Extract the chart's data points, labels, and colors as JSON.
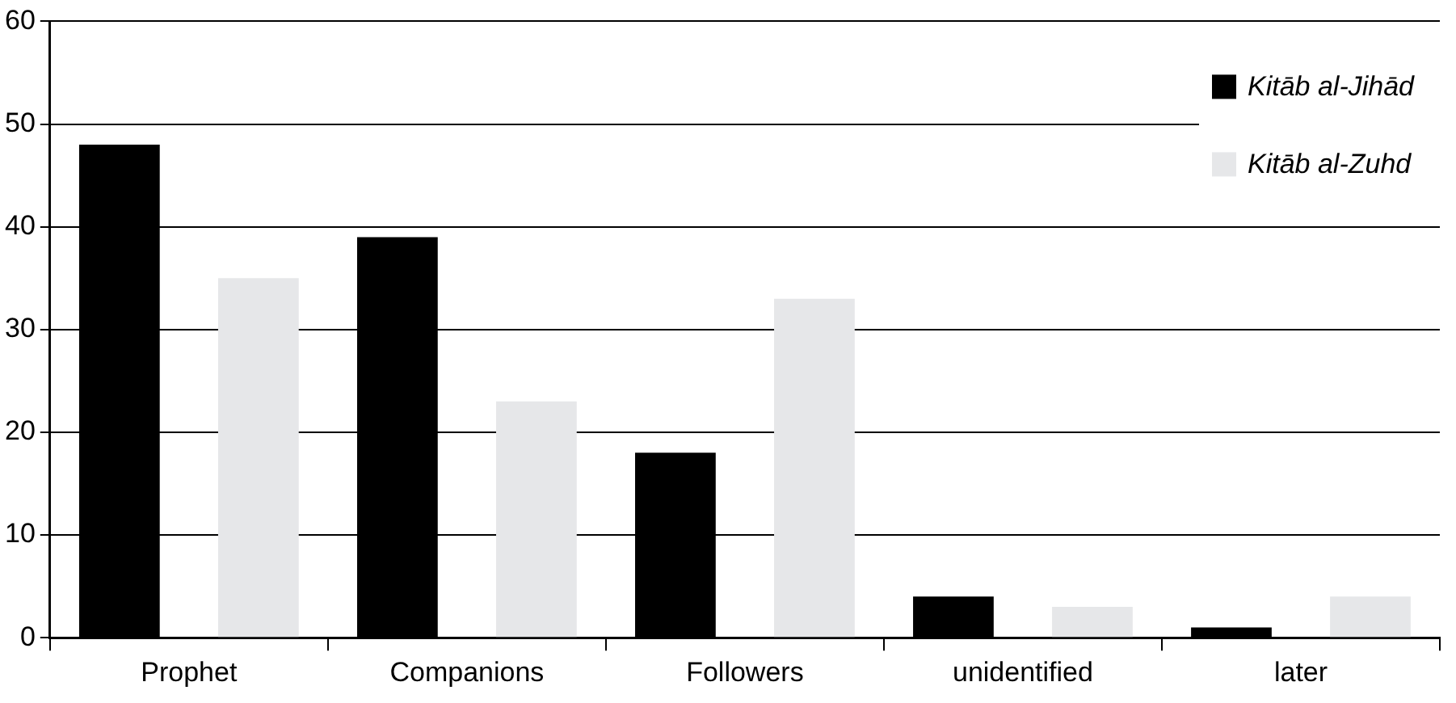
{
  "chart_data": {
    "type": "bar",
    "categories": [
      "Prophet",
      "Companions",
      "Followers",
      "unidentified",
      "later"
    ],
    "series": [
      {
        "name": "Kitāb al-Jihād",
        "color": "#000000",
        "values": [
          48,
          39,
          18,
          4,
          1
        ]
      },
      {
        "name": "Kitāb al-Zuhd",
        "color": "#e6e7e9",
        "values": [
          35,
          23,
          33,
          3,
          4
        ]
      }
    ],
    "ylim": [
      0,
      60
    ],
    "yticks": [
      0,
      10,
      20,
      30,
      40,
      50,
      60
    ],
    "grid": "y",
    "legend": "top right"
  }
}
